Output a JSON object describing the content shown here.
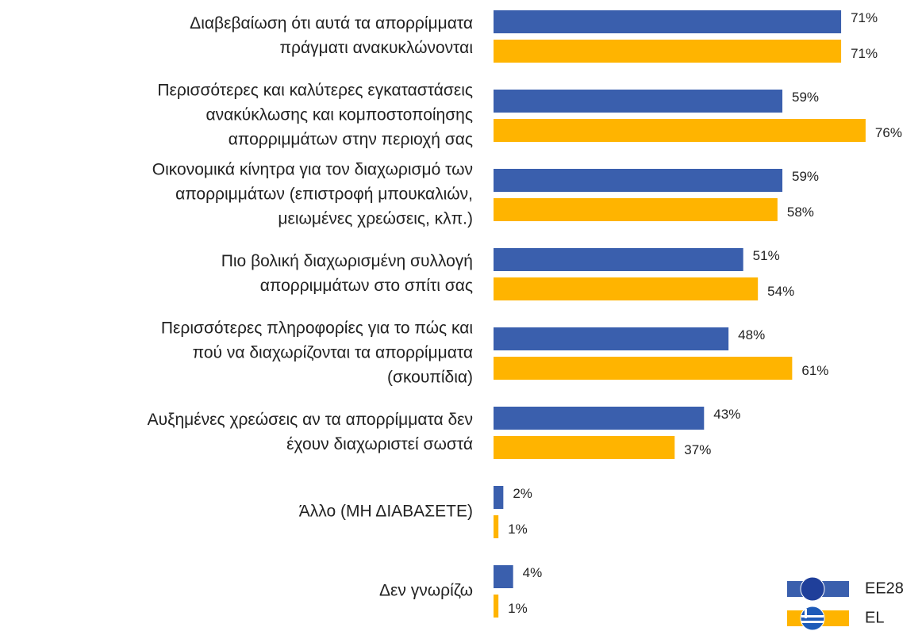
{
  "chart_data": {
    "type": "bar",
    "orientation": "horizontal",
    "categories": [
      [
        "Διαβεβαίωση ότι αυτά τα απορρίμματα",
        "πράγματι ανακυκλώνονται"
      ],
      [
        "Περισσότερες και καλύτερες εγκαταστάσεις",
        "ανακύκλωσης και κομποστοποίησης",
        "απορριμμάτων στην περιοχή σας"
      ],
      [
        "Οικονομικά κίνητρα για τον διαχωρισμό των",
        "απορριμμάτων (επιστροφή μπουκαλιών,",
        "μειωμένες χρεώσεις, κλπ.)"
      ],
      [
        "Πιο βολική διαχωρισμένη συλλογή",
        "απορριμμάτων στο σπίτι σας"
      ],
      [
        "Περισσότερες πληροφορίες για το πώς και",
        "πού να διαχωρίζονται τα απορρίμματα",
        "(σκουπίδια)"
      ],
      [
        "Αυξημένες χρεώσεις αν τα απορρίμματα δεν",
        "έχουν διαχωριστεί σωστά"
      ],
      [
        "Άλλο (ΜΗ ΔΙΑΒΑΣΕΤΕ)"
      ],
      [
        "Δεν γνωρίζω"
      ]
    ],
    "series": [
      {
        "name": "EE28",
        "color": "#3a5fad",
        "values": [
          71,
          59,
          59,
          51,
          48,
          43,
          2,
          4
        ],
        "value_labels": [
          "71%",
          "59%",
          "59%",
          "51%",
          "48%",
          "43%",
          "2%",
          "4%"
        ]
      },
      {
        "name": "EL",
        "color": "#ffb400",
        "values": [
          71,
          76,
          58,
          54,
          61,
          37,
          1,
          1
        ],
        "value_labels": [
          "71%",
          "76%",
          "58%",
          "54%",
          "61%",
          "37%",
          "1%",
          "1%"
        ]
      }
    ],
    "legend": "bottom-right"
  }
}
